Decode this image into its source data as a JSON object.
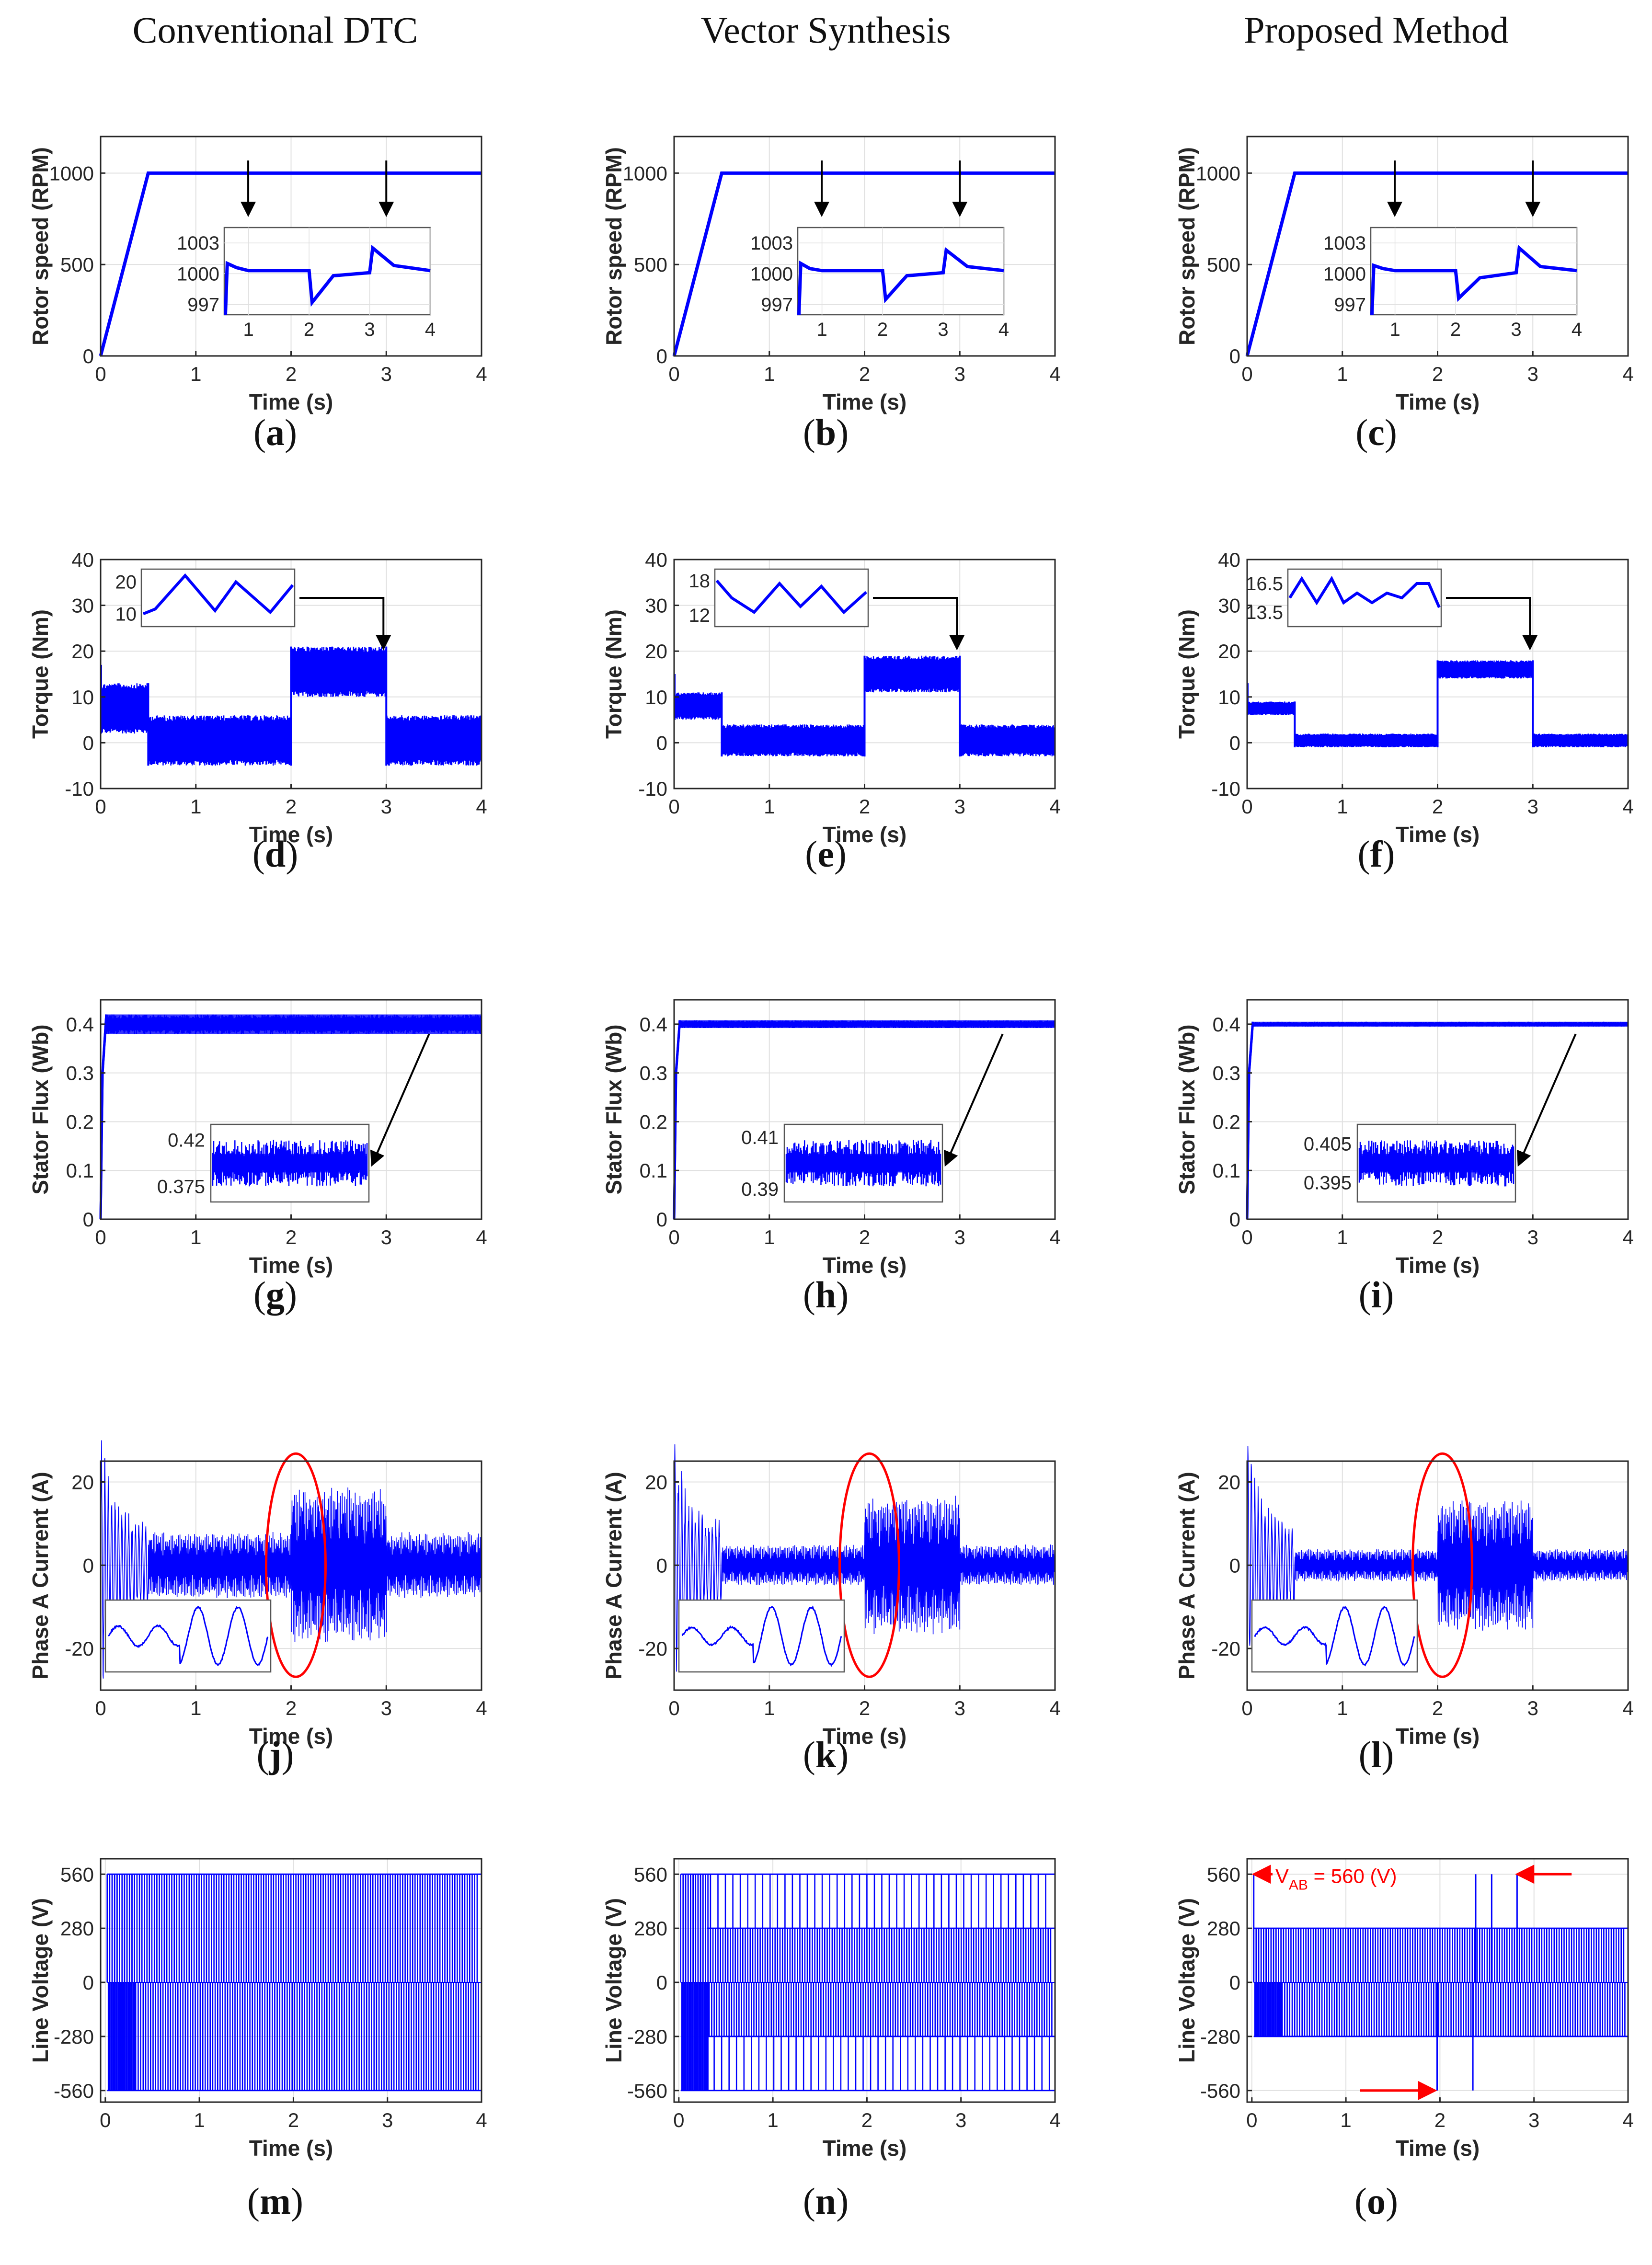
{
  "column_titles": [
    "Conventional DTC",
    "Vector Synthesis",
    "Proposed Method"
  ],
  "colors": {
    "trace": "#0000ff",
    "grid": "#e0e0e0",
    "axis": "#262626",
    "annotation": "#ff0000",
    "arrow": "#000000"
  },
  "chart_data": [
    {
      "id": "a",
      "label": "a",
      "type": "line",
      "row": "speed",
      "title": "",
      "xlabel": "Time (s)",
      "ylabel": "Rotor speed (RPM)",
      "xlim": [
        0,
        4
      ],
      "ylim": [
        0,
        1200
      ],
      "xticks": [
        0,
        1,
        2,
        3,
        4
      ],
      "yticks": [
        0,
        500,
        1000
      ],
      "x": [
        0,
        0.5,
        4
      ],
      "y": [
        0,
        1000,
        1000
      ],
      "inset": {
        "xlim": [
          0.6,
          4
        ],
        "ylim": [
          996,
          1004.5
        ],
        "xticks": [
          1,
          2,
          3,
          4
        ],
        "yticks": [
          997,
          1000,
          1003
        ],
        "x": [
          0.62,
          0.65,
          0.8,
          1.0,
          2.0,
          2.05,
          2.4,
          3.0,
          3.05,
          3.4,
          4.0
        ],
        "y": [
          996,
          1001,
          1000.6,
          1000.3,
          1000.3,
          997.2,
          999.8,
          1000.1,
          1002.5,
          1000.8,
          1000.3
        ]
      },
      "arrow_times": [
        1.55,
        3.0
      ]
    },
    {
      "id": "b",
      "label": "b",
      "type": "line",
      "row": "speed",
      "title": "",
      "xlabel": "Time (s)",
      "ylabel": "Rotor speed (RPM)",
      "xlim": [
        0,
        4
      ],
      "ylim": [
        0,
        1200
      ],
      "xticks": [
        0,
        1,
        2,
        3,
        4
      ],
      "yticks": [
        0,
        500,
        1000
      ],
      "x": [
        0,
        0.5,
        4
      ],
      "y": [
        0,
        1000,
        1000
      ],
      "inset": {
        "xlim": [
          0.6,
          4
        ],
        "ylim": [
          996,
          1004.5
        ],
        "xticks": [
          1,
          2,
          3,
          4
        ],
        "yticks": [
          997,
          1000,
          1003
        ],
        "x": [
          0.62,
          0.65,
          0.8,
          1.0,
          2.0,
          2.05,
          2.4,
          3.0,
          3.05,
          3.4,
          4.0
        ],
        "y": [
          996,
          1001,
          1000.5,
          1000.3,
          1000.3,
          997.5,
          999.8,
          1000.1,
          1002.3,
          1000.7,
          1000.3
        ]
      },
      "arrow_times": [
        1.55,
        3.0
      ]
    },
    {
      "id": "c",
      "label": "c",
      "type": "line",
      "row": "speed",
      "title": "",
      "xlabel": "Time (s)",
      "ylabel": "Rotor speed (RPM)",
      "xlim": [
        0,
        4
      ],
      "ylim": [
        0,
        1200
      ],
      "xticks": [
        0,
        1,
        2,
        3,
        4
      ],
      "yticks": [
        0,
        500,
        1000
      ],
      "x": [
        0,
        0.5,
        4
      ],
      "y": [
        0,
        1000,
        1000
      ],
      "inset": {
        "xlim": [
          0.6,
          4
        ],
        "ylim": [
          996,
          1004.5
        ],
        "xticks": [
          1,
          2,
          3,
          4
        ],
        "yticks": [
          997,
          1000,
          1003
        ],
        "x": [
          0.62,
          0.65,
          0.8,
          1.0,
          2.0,
          2.05,
          2.4,
          3.0,
          3.05,
          3.4,
          4.0
        ],
        "y": [
          996,
          1000.8,
          1000.5,
          1000.3,
          1000.3,
          997.6,
          999.6,
          1000.1,
          1002.5,
          1000.7,
          1000.3
        ]
      },
      "arrow_times": [
        1.55,
        3.0
      ]
    },
    {
      "id": "d",
      "label": "d",
      "type": "line",
      "row": "torque",
      "title": "",
      "xlabel": "Time (s)",
      "ylabel": "Torque (Nm)",
      "xlim": [
        0,
        4
      ],
      "ylim": [
        -10,
        40
      ],
      "xticks": [
        0,
        1,
        2,
        3,
        4
      ],
      "yticks": [
        -10,
        0,
        10,
        20,
        30,
        40
      ],
      "bands": [
        {
          "x0": 0,
          "x1": 0.5,
          "lo": 2,
          "hi": 13
        },
        {
          "x0": 0.5,
          "x1": 2,
          "lo": -5,
          "hi": 6
        },
        {
          "x0": 2,
          "x1": 3,
          "lo": 10,
          "hi": 21
        },
        {
          "x0": 3,
          "x1": 4,
          "lo": -5,
          "hi": 6
        }
      ],
      "inset": {
        "ylim": [
          6,
          24
        ],
        "yticks": [
          10,
          20
        ],
        "wave_x": [
          0,
          0.08,
          0.28,
          0.48,
          0.62,
          0.85,
          1.0
        ],
        "wave_y": [
          10,
          11.5,
          22,
          11,
          20,
          10.5,
          19
        ]
      }
    },
    {
      "id": "e",
      "label": "e",
      "type": "line",
      "row": "torque",
      "title": "",
      "xlabel": "Time (s)",
      "ylabel": "Torque (Nm)",
      "xlim": [
        0,
        4
      ],
      "ylim": [
        -10,
        40
      ],
      "xticks": [
        0,
        1,
        2,
        3,
        4
      ],
      "yticks": [
        -10,
        0,
        10,
        20,
        30,
        40
      ],
      "bands": [
        {
          "x0": 0,
          "x1": 0.5,
          "lo": 5,
          "hi": 11
        },
        {
          "x0": 0.5,
          "x1": 2,
          "lo": -3,
          "hi": 4
        },
        {
          "x0": 2,
          "x1": 3,
          "lo": 11,
          "hi": 19
        },
        {
          "x0": 3,
          "x1": 4,
          "lo": -3,
          "hi": 4
        }
      ],
      "inset": {
        "ylim": [
          10,
          20
        ],
        "yticks": [
          12,
          18
        ],
        "wave_x": [
          0,
          0.1,
          0.25,
          0.42,
          0.56,
          0.7,
          0.85,
          1.0
        ],
        "wave_y": [
          18,
          15,
          12.5,
          17.5,
          13.5,
          17,
          12.5,
          16
        ]
      }
    },
    {
      "id": "f",
      "label": "f",
      "type": "line",
      "row": "torque",
      "title": "",
      "xlabel": "Time (s)",
      "ylabel": "Torque (Nm)",
      "xlim": [
        0,
        4
      ],
      "ylim": [
        -10,
        40
      ],
      "xticks": [
        0,
        1,
        2,
        3,
        4
      ],
      "yticks": [
        -10,
        0,
        10,
        20,
        30,
        40
      ],
      "bands": [
        {
          "x0": 0,
          "x1": 0.5,
          "lo": 6,
          "hi": 9
        },
        {
          "x0": 0.5,
          "x1": 2,
          "lo": -1,
          "hi": 2
        },
        {
          "x0": 2,
          "x1": 3,
          "lo": 14,
          "hi": 18
        },
        {
          "x0": 3,
          "x1": 4,
          "lo": -1,
          "hi": 2
        }
      ],
      "inset": {
        "ylim": [
          12,
          18
        ],
        "yticks": [
          13.5,
          16.5
        ],
        "wave_x": [
          0,
          0.08,
          0.18,
          0.28,
          0.36,
          0.45,
          0.55,
          0.65,
          0.75,
          0.85,
          0.93,
          1.0
        ],
        "wave_y": [
          15,
          17,
          14.5,
          17,
          14.5,
          15.5,
          14.5,
          15.5,
          15,
          16.5,
          16.5,
          14
        ]
      }
    },
    {
      "id": "g",
      "label": "g",
      "type": "line",
      "row": "flux",
      "title": "",
      "xlabel": "Time (s)",
      "ylabel": "Stator Flux (Wb)",
      "xlim": [
        0,
        4
      ],
      "ylim": [
        0,
        0.45
      ],
      "xticks": [
        0,
        1,
        2,
        3,
        4
      ],
      "yticks": [
        0,
        0.1,
        0.2,
        0.3,
        0.4
      ],
      "band": {
        "lo": 0.38,
        "hi": 0.42
      },
      "inset": {
        "ylim": [
          0.36,
          0.435
        ],
        "yticks": [
          0.375,
          0.42
        ],
        "lo": 0.375,
        "hi": 0.42
      }
    },
    {
      "id": "h",
      "label": "h",
      "type": "line",
      "row": "flux",
      "title": "",
      "xlabel": "Time (s)",
      "ylabel": "Stator Flux (Wb)",
      "xlim": [
        0,
        4
      ],
      "ylim": [
        0,
        0.45
      ],
      "xticks": [
        0,
        1,
        2,
        3,
        4
      ],
      "yticks": [
        0,
        0.1,
        0.2,
        0.3,
        0.4
      ],
      "band": {
        "lo": 0.392,
        "hi": 0.408
      },
      "inset": {
        "ylim": [
          0.385,
          0.415
        ],
        "yticks": [
          0.39,
          0.41
        ],
        "lo": 0.391,
        "hi": 0.409
      }
    },
    {
      "id": "i",
      "label": "i",
      "type": "line",
      "row": "flux",
      "title": "",
      "xlabel": "Time (s)",
      "ylabel": "Stator Flux (Wb)",
      "xlim": [
        0,
        4
      ],
      "ylim": [
        0,
        0.45
      ],
      "xticks": [
        0,
        1,
        2,
        3,
        4
      ],
      "yticks": [
        0,
        0.1,
        0.2,
        0.3,
        0.4
      ],
      "band": {
        "lo": 0.395,
        "hi": 0.405
      },
      "inset": {
        "ylim": [
          0.39,
          0.41
        ],
        "yticks": [
          0.395,
          0.405
        ],
        "lo": 0.394,
        "hi": 0.406
      }
    },
    {
      "id": "j",
      "label": "j",
      "type": "line",
      "row": "current",
      "title": "",
      "xlabel": "Time (s)",
      "ylabel": "Phase A Current (A)",
      "xlim": [
        0,
        4
      ],
      "ylim": [
        -30,
        25
      ],
      "xticks": [
        0,
        1,
        2,
        3,
        4
      ],
      "yticks": [
        -20,
        0,
        20
      ],
      "segments": [
        {
          "x0": 0.5,
          "x1": 2,
          "amp": 8
        },
        {
          "x0": 2,
          "x1": 3,
          "amp": 19
        },
        {
          "x0": 3,
          "x1": 4,
          "amp": 8
        }
      ],
      "inset": {
        "amp1": 0.35,
        "amp2": 1.0
      }
    },
    {
      "id": "k",
      "label": "k",
      "type": "line",
      "row": "current",
      "title": "",
      "xlabel": "Time (s)",
      "ylabel": "Phase A Current (A)",
      "xlim": [
        0,
        4
      ],
      "ylim": [
        -30,
        25
      ],
      "xticks": [
        0,
        1,
        2,
        3,
        4
      ],
      "yticks": [
        -20,
        0,
        20
      ],
      "segments": [
        {
          "x0": 0.5,
          "x1": 2,
          "amp": 5
        },
        {
          "x0": 2,
          "x1": 3,
          "amp": 17
        },
        {
          "x0": 3,
          "x1": 4,
          "amp": 5
        }
      ],
      "inset": {
        "amp1": 0.3,
        "amp2": 1.0
      }
    },
    {
      "id": "l",
      "label": "l",
      "type": "line",
      "row": "current",
      "title": "",
      "xlabel": "Time (s)",
      "ylabel": "Phase A Current (A)",
      "xlim": [
        0,
        4
      ],
      "ylim": [
        -30,
        25
      ],
      "xticks": [
        0,
        1,
        2,
        3,
        4
      ],
      "yticks": [
        -20,
        0,
        20
      ],
      "segments": [
        {
          "x0": 0.5,
          "x1": 2,
          "amp": 4
        },
        {
          "x0": 2,
          "x1": 3,
          "amp": 16
        },
        {
          "x0": 3,
          "x1": 4,
          "amp": 4
        }
      ],
      "inset": {
        "amp1": 0.3,
        "amp2": 1.0
      }
    },
    {
      "id": "m",
      "label": "m",
      "type": "line",
      "row": "voltage",
      "title": "",
      "xlabel": "Time (s)",
      "ylabel": "Line Voltage (V)",
      "xlim": [
        -0.05,
        4
      ],
      "ylim": [
        -620,
        640
      ],
      "xticks": [
        0,
        1,
        2,
        3,
        4
      ],
      "yticks": [
        -560,
        -280,
        0,
        280,
        560
      ],
      "levels": {
        "pos": 560,
        "neg": -560,
        "mid": null
      }
    },
    {
      "id": "n",
      "label": "n",
      "type": "line",
      "row": "voltage",
      "title": "",
      "xlabel": "Time (s)",
      "ylabel": "Line Voltage (V)",
      "xlim": [
        -0.05,
        4
      ],
      "ylim": [
        -620,
        640
      ],
      "xticks": [
        0,
        1,
        2,
        3,
        4
      ],
      "yticks": [
        -560,
        -280,
        0,
        280,
        560
      ],
      "levels": {
        "pos": 560,
        "neg": -560,
        "mid": 280
      }
    },
    {
      "id": "o",
      "label": "o",
      "type": "line",
      "row": "voltage",
      "title": "",
      "xlabel": "Time (s)",
      "ylabel": "Line Voltage (V)",
      "xlim": [
        -0.05,
        4
      ],
      "ylim": [
        -620,
        640
      ],
      "xticks": [
        0,
        1,
        2,
        3,
        4
      ],
      "yticks": [
        -560,
        -280,
        0,
        280,
        560
      ],
      "levels": {
        "pos": 280,
        "neg": -280,
        "mid": null
      },
      "spikes": [
        {
          "x": 0.02,
          "v": 560
        },
        {
          "x": 1.97,
          "v": -560
        },
        {
          "x": 2.35,
          "v": -560
        },
        {
          "x": 2.38,
          "v": 560
        },
        {
          "x": 2.55,
          "v": 560
        },
        {
          "x": 2.82,
          "v": 560
        }
      ],
      "annotation": {
        "text_main": "V",
        "text_sub": "AB",
        "text_rest": " = 560 (V)"
      }
    }
  ]
}
